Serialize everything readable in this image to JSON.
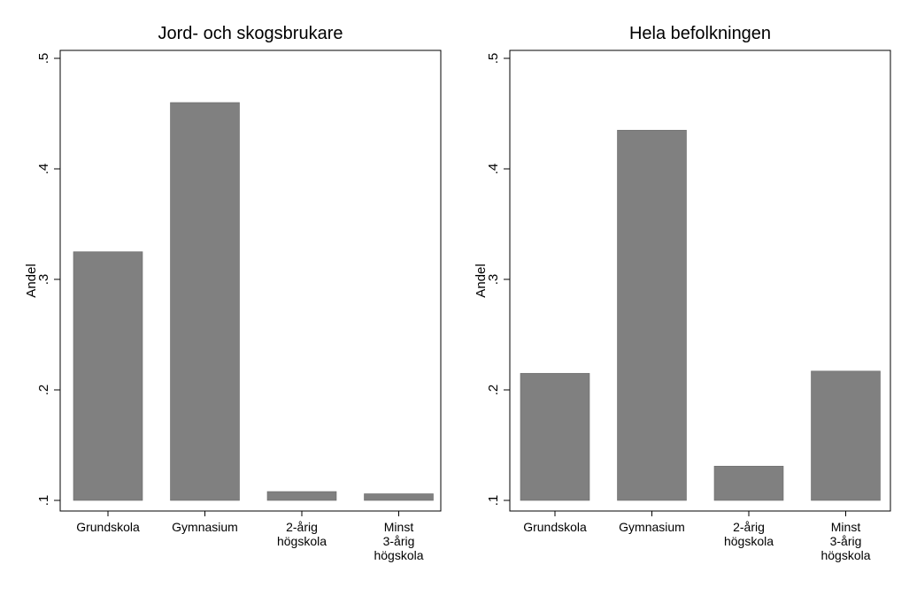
{
  "chart_data": [
    {
      "type": "bar",
      "title": "Jord- och skogsbrukare",
      "ylabel": "Andel",
      "xlabel": "",
      "ylim": [
        0.1,
        0.5
      ],
      "yticks": [
        ".1",
        ".2",
        ".3",
        ".4",
        ".5"
      ],
      "categories": [
        [
          "Grundskola"
        ],
        [
          "Gymnasium"
        ],
        [
          "2-årig",
          "högskola"
        ],
        [
          "Minst",
          "3-årig",
          "högskola"
        ]
      ],
      "values": [
        0.325,
        0.46,
        0.108,
        0.106
      ],
      "bar_color": "#808080",
      "grid": false
    },
    {
      "type": "bar",
      "title": "Hela befolkningen",
      "ylabel": "Andel",
      "xlabel": "",
      "ylim": [
        0.1,
        0.5
      ],
      "yticks": [
        ".1",
        ".2",
        ".3",
        ".4",
        ".5"
      ],
      "categories": [
        [
          "Grundskola"
        ],
        [
          "Gymnasium"
        ],
        [
          "2-årig",
          "högskola"
        ],
        [
          "Minst",
          "3-årig",
          "högskola"
        ]
      ],
      "values": [
        0.215,
        0.435,
        0.131,
        0.217
      ],
      "bar_color": "#808080",
      "grid": false
    }
  ]
}
